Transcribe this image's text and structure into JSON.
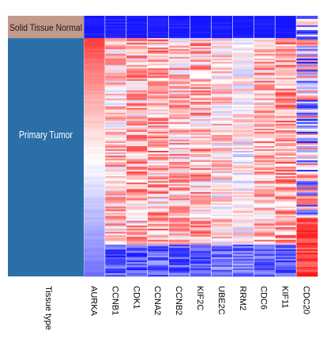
{
  "chart_data": {
    "type": "heatmap",
    "title": "",
    "xlabel": "",
    "ylabel": "",
    "row_label": "Tissue type",
    "groups": [
      {
        "name": "Solid Tissue Normal",
        "color": "#c49a8c",
        "rows": 14
      },
      {
        "name": "Primary Tumor",
        "color": "#2a6fa8",
        "rows": 150
      }
    ],
    "genes": [
      "AURKA",
      "CCNB1",
      "CDK1",
      "CCNA2",
      "CCNB2",
      "KIF2C",
      "UBE2C",
      "RRM2",
      "CDC6",
      "KIF11",
      "CDC20"
    ],
    "color_scale": {
      "low": "#1414ff",
      "mid": "#ffffff",
      "high": "#ff1414"
    },
    "value_range": [
      -1,
      1
    ],
    "cells": {
      "normal": {
        "AURKA": -1,
        "CCNB1": -0.95,
        "CDK1": -1,
        "CCNA2": -1,
        "CCNB2": -0.97,
        "KIF2C": -1,
        "UBE2C": -0.98,
        "RRM2": -1,
        "CDC6": -1,
        "KIF11": -1,
        "CDC20": -0.3
      },
      "tumor_profile": {
        "AURKA": {
          "start": 0.85,
          "end": -0.6
        },
        "CCNB1": {
          "mean": 0.25,
          "spread": 0.45,
          "tail": -0.7
        },
        "CDK1": {
          "mean": 0.3,
          "spread": 0.5,
          "tail": -0.7
        },
        "CCNA2": {
          "mean": 0.35,
          "spread": 0.5,
          "tail": -0.65
        },
        "CCNB2": {
          "mean": 0.25,
          "spread": 0.45,
          "tail": -0.7
        },
        "KIF2C": {
          "mean": 0.3,
          "spread": 0.5,
          "tail": -0.7
        },
        "UBE2C": {
          "mean": 0.15,
          "spread": 0.4,
          "tail": -0.6
        },
        "RRM2": {
          "mean": 0.05,
          "spread": 0.35,
          "tail": -0.6
        },
        "CDC6": {
          "mean": 0.3,
          "spread": 0.45,
          "tail": -0.7
        },
        "KIF11": {
          "mean": 0.4,
          "spread": 0.45,
          "tail": -0.7
        },
        "CDC20": {
          "mean": -0.15,
          "spread": 0.9,
          "tail": 0.8
        }
      }
    }
  }
}
